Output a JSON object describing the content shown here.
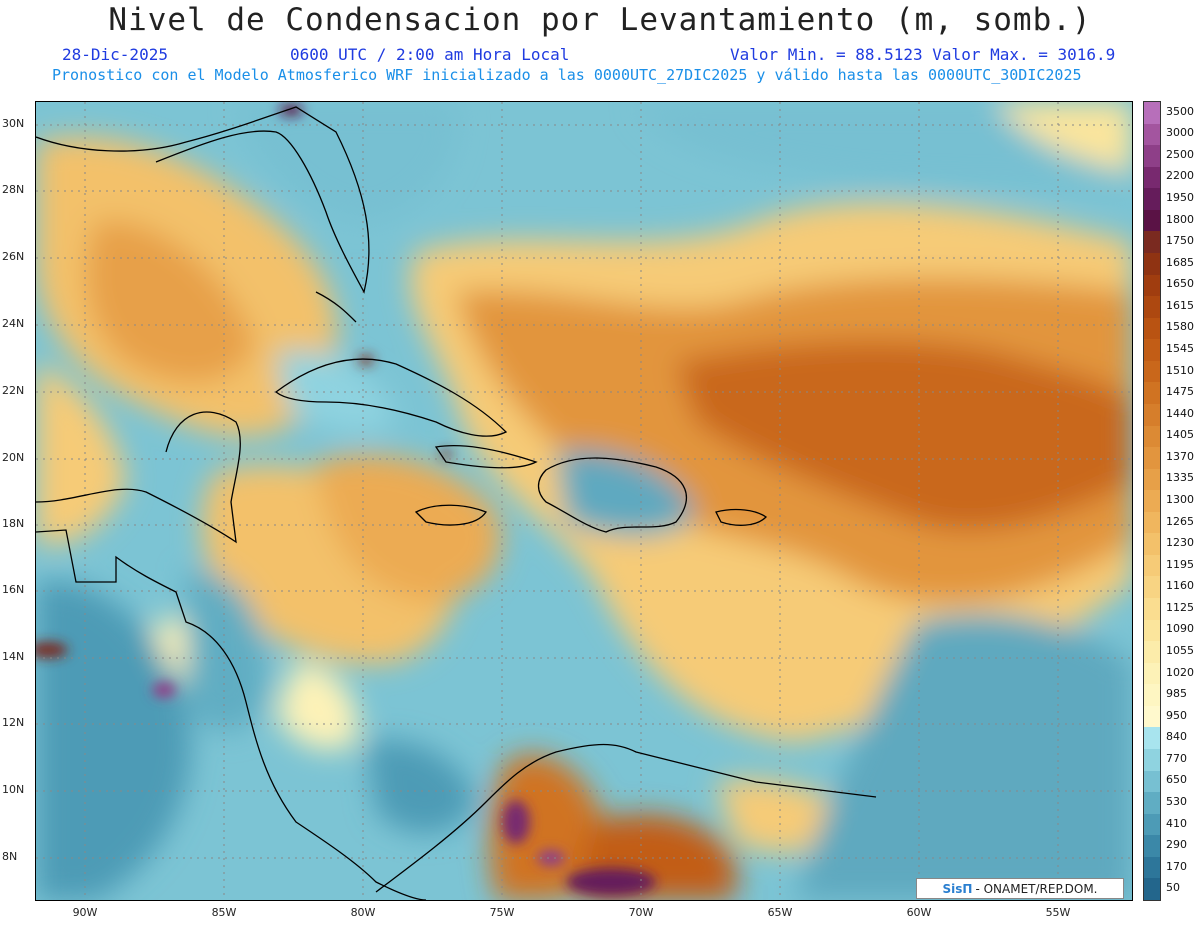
{
  "header": {
    "title": "Nivel de Condensacion por Levantamiento (m, somb.)",
    "date": "28-Dic-2025",
    "time": "0600 UTC / 2:00 am Hora Local",
    "stats": "Valor Min. = 88.5123   Valor Max. = 3016.9",
    "subtitle": "Pronostico con el Modelo Atmosferico WRF inicializado a las 0000UTC_27DIC2025 y válido hasta las  0000UTC_30DIC2025"
  },
  "map": {
    "lat_labels": [
      "30N",
      "28N",
      "26N",
      "24N",
      "22N",
      "20N",
      "18N",
      "16N",
      "14N",
      "12N",
      "10N",
      "8N"
    ],
    "lon_labels": [
      "90W",
      "85W",
      "80W",
      "75W",
      "70W",
      "65W",
      "60W",
      "55W"
    ],
    "credit_logo": "SisΠ",
    "credit_text": "- ONAMET/REP.DOM."
  },
  "colorbar": {
    "labels": [
      "3500",
      "3000",
      "2500",
      "2200",
      "1950",
      "1800",
      "1750",
      "1685",
      "1650",
      "1615",
      "1580",
      "1545",
      "1510",
      "1475",
      "1440",
      "1405",
      "1370",
      "1335",
      "1300",
      "1265",
      "1230",
      "1195",
      "1160",
      "1125",
      "1090",
      "1055",
      "1020",
      "985",
      "950",
      "840",
      "770",
      "650",
      "530",
      "410",
      "290",
      "170",
      "50"
    ],
    "colors": [
      "#b76fba",
      "#a3559f",
      "#8e3f88",
      "#78296f",
      "#651c5b",
      "#5a1245",
      "#7a2a20",
      "#8f3312",
      "#a03d0f",
      "#ad4810",
      "#b95312",
      "#c25d16",
      "#c9671b",
      "#d07322",
      "#d67e2b",
      "#dc8a34",
      "#e2953e",
      "#e7a048",
      "#ecab53",
      "#f0b65e",
      "#f3c16a",
      "#f6cb77",
      "#f8d483",
      "#fadd90",
      "#fbe59c",
      "#fcecaa",
      "#fdf2b7",
      "#fef6c2",
      "#fff9cd",
      "#a8e4ee",
      "#8fd3e0",
      "#77c0d2",
      "#60adc3",
      "#4d9bb6",
      "#3b88a8",
      "#2d769a",
      "#23668c"
    ]
  }
}
